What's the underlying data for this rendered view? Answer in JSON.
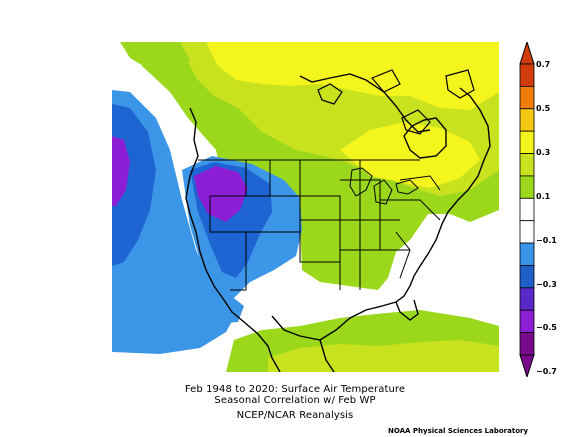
{
  "title": {
    "line1": "Feb 1948 to 2020: Surface Air Temperature",
    "line2": "Seasonal Correlation w/ Feb WP",
    "line3": "NCEP/NCAR Reanalysis"
  },
  "credit": "NOAA Physical Sciences Laboratory",
  "colorbar": {
    "segments": [
      {
        "color": "#7a0a8c"
      },
      {
        "color": "#8c1fd6"
      },
      {
        "color": "#5a28c8"
      },
      {
        "color": "#1e5fc8"
      },
      {
        "color": "#3a94e8"
      },
      {
        "color": "#ffffff"
      },
      {
        "color": "#ffffff"
      },
      {
        "color": "#9bd81c"
      },
      {
        "color": "#c8e21e"
      },
      {
        "color": "#f5f51e"
      },
      {
        "color": "#f5c814"
      },
      {
        "color": "#f07d0a"
      },
      {
        "color": "#d03c0a"
      }
    ],
    "labels": [
      "0.7",
      "0.5",
      "0.3",
      "0.1",
      "−0.1",
      "−0.3",
      "−0.5",
      "−0.7"
    ]
  },
  "map_colors": {
    "strong_negative": "#8c1fd6",
    "negative_dark": "#1e64d2",
    "negative_mid": "#3c96e8",
    "positive_light": "#9bd81c",
    "positive_mid": "#c8e21e",
    "positive_high": "#f5f51e",
    "neutral": "#ffffff"
  }
}
